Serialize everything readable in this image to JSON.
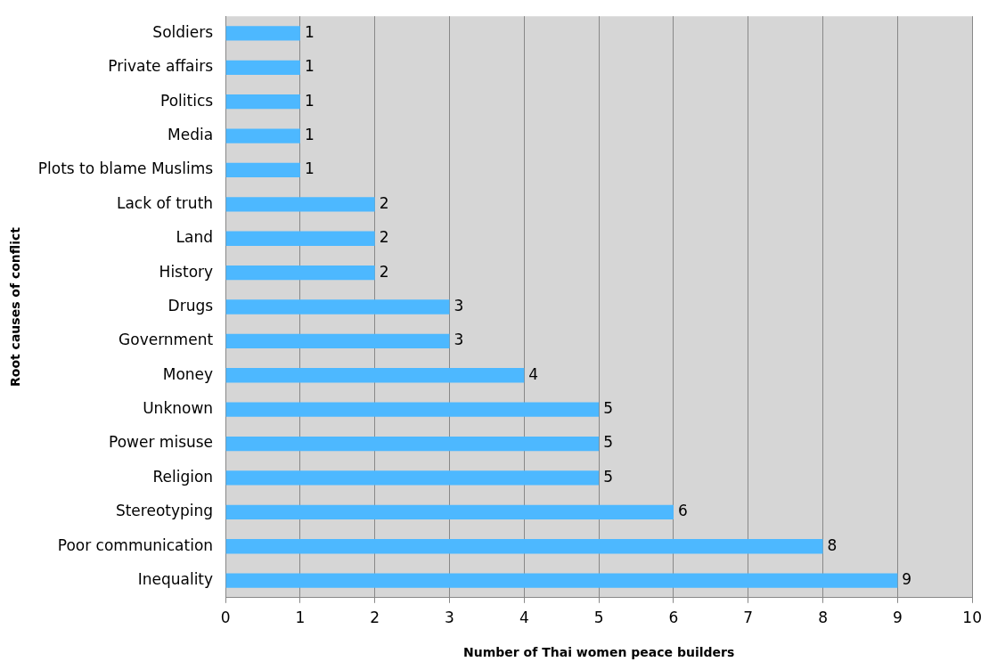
{
  "chart_data": {
    "type": "bar",
    "orientation": "horizontal",
    "xlabel": "Number of Thai women peace builders",
    "ylabel": "Root causes of conflict",
    "categories": [
      "Soldiers",
      "Private affairs",
      "Politics",
      "Media",
      "Plots to blame Muslims",
      "Lack of truth",
      "Land",
      "History",
      "Drugs",
      "Government",
      "Money",
      "Unknown",
      "Power misuse",
      "Religion",
      "Stereotyping",
      "Poor communication",
      "Inequality"
    ],
    "values": [
      1,
      1,
      1,
      1,
      1,
      2,
      2,
      2,
      3,
      3,
      4,
      5,
      5,
      5,
      6,
      8,
      9
    ],
    "color": "#4db8ff",
    "xlim": [
      0,
      10
    ],
    "xticks": [
      0,
      1,
      2,
      3,
      4,
      5,
      6,
      7,
      8,
      9,
      10
    ],
    "grid": "x",
    "legend": false,
    "data_labels": true
  }
}
